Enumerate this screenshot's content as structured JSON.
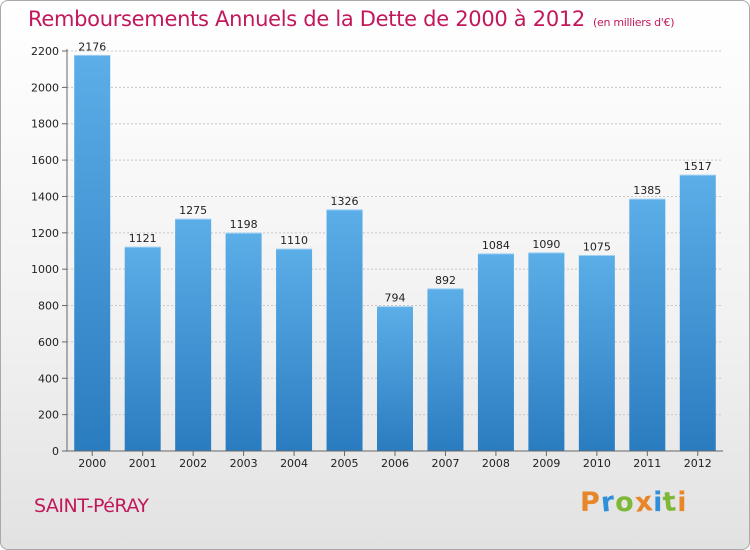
{
  "header": {
    "title": "Remboursements Annuels de la Dette de 2000 à 2012",
    "subtitle": "(en milliers d'€)"
  },
  "footer": {
    "town": "SAINT-PéRAY",
    "logo_text": "Proxiti",
    "logo_colors": [
      "#e8862a",
      "#2f8fd8",
      "#7fb839",
      "#e8862a",
      "#2f8fd8",
      "#7fb839",
      "#e8862a"
    ]
  },
  "chart_data": {
    "type": "bar",
    "title": "Remboursements Annuels de la Dette de 2000 à 2012",
    "xlabel": "",
    "ylabel": "",
    "categories": [
      "2000",
      "2001",
      "2002",
      "2003",
      "2004",
      "2005",
      "2006",
      "2007",
      "2008",
      "2009",
      "2010",
      "2011",
      "2012"
    ],
    "values": [
      2176,
      1121,
      1275,
      1198,
      1110,
      1326,
      794,
      892,
      1084,
      1090,
      1075,
      1385,
      1517
    ],
    "ylim": [
      0,
      2200
    ],
    "yticks": [
      0,
      200,
      400,
      600,
      800,
      1000,
      1200,
      1400,
      1600,
      1800,
      2000,
      2200
    ],
    "grid": true,
    "bar_color_top": "#5caee8",
    "bar_color_bottom": "#2a7cc0"
  }
}
